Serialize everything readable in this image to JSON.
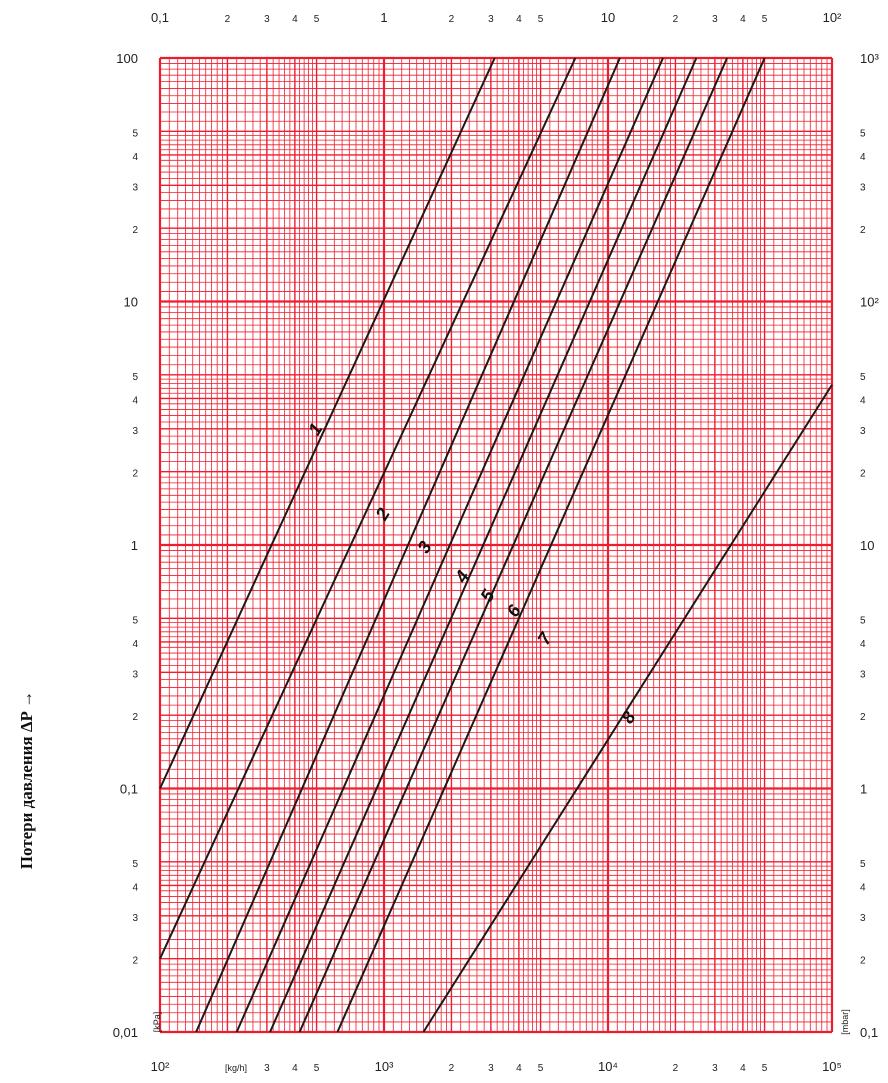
{
  "chart_data": {
    "type": "line",
    "xscale": "log",
    "yscale": "log",
    "ylabel": "Потери давления ΔP →",
    "x_unit": "[kg/h]",
    "y_unit_left": "[kPa]",
    "y_unit_right": "[mbar]",
    "xlim": [
      100,
      100000
    ],
    "ylim": [
      0.01,
      100
    ],
    "grid": true,
    "top_ticks": [
      {
        "v": 100,
        "t": "0,1"
      },
      {
        "v": 200,
        "t": "2"
      },
      {
        "v": 300,
        "t": "3"
      },
      {
        "v": 400,
        "t": "4"
      },
      {
        "v": 500,
        "t": "5"
      },
      {
        "v": 1000,
        "t": "1"
      },
      {
        "v": 2000,
        "t": "2"
      },
      {
        "v": 3000,
        "t": "3"
      },
      {
        "v": 4000,
        "t": "4"
      },
      {
        "v": 5000,
        "t": "5"
      },
      {
        "v": 10000,
        "t": "10"
      },
      {
        "v": 20000,
        "t": "2"
      },
      {
        "v": 30000,
        "t": "3"
      },
      {
        "v": 40000,
        "t": "4"
      },
      {
        "v": 50000,
        "t": "5"
      },
      {
        "v": 100000,
        "t": "10²"
      }
    ],
    "bottom_ticks": [
      {
        "v": 100,
        "t": "10²"
      },
      {
        "v": 300,
        "t": "3"
      },
      {
        "v": 400,
        "t": "4"
      },
      {
        "v": 500,
        "t": "5"
      },
      {
        "v": 1000,
        "t": "10³"
      },
      {
        "v": 2000,
        "t": "2"
      },
      {
        "v": 3000,
        "t": "3"
      },
      {
        "v": 4000,
        "t": "4"
      },
      {
        "v": 5000,
        "t": "5"
      },
      {
        "v": 10000,
        "t": "10⁴"
      },
      {
        "v": 20000,
        "t": "2"
      },
      {
        "v": 30000,
        "t": "3"
      },
      {
        "v": 40000,
        "t": "4"
      },
      {
        "v": 50000,
        "t": "5"
      },
      {
        "v": 100000,
        "t": "10⁵"
      }
    ],
    "left_ticks": [
      {
        "v": 100,
        "t": "100"
      },
      {
        "v": 50,
        "t": "5"
      },
      {
        "v": 40,
        "t": "4"
      },
      {
        "v": 30,
        "t": "3"
      },
      {
        "v": 20,
        "t": "2"
      },
      {
        "v": 10,
        "t": "10"
      },
      {
        "v": 5,
        "t": "5"
      },
      {
        "v": 4,
        "t": "4"
      },
      {
        "v": 3,
        "t": "3"
      },
      {
        "v": 2,
        "t": "2"
      },
      {
        "v": 1,
        "t": "1"
      },
      {
        "v": 0.5,
        "t": "5"
      },
      {
        "v": 0.4,
        "t": "4"
      },
      {
        "v": 0.3,
        "t": "3"
      },
      {
        "v": 0.2,
        "t": "2"
      },
      {
        "v": 0.1,
        "t": "0,1"
      },
      {
        "v": 0.05,
        "t": "5"
      },
      {
        "v": 0.04,
        "t": "4"
      },
      {
        "v": 0.03,
        "t": "3"
      },
      {
        "v": 0.02,
        "t": "2"
      },
      {
        "v": 0.01,
        "t": "0,01"
      }
    ],
    "right_ticks": [
      {
        "v": 100,
        "t": "10³"
      },
      {
        "v": 50,
        "t": "5"
      },
      {
        "v": 40,
        "t": "4"
      },
      {
        "v": 30,
        "t": "3"
      },
      {
        "v": 20,
        "t": "2"
      },
      {
        "v": 10,
        "t": "10²"
      },
      {
        "v": 5,
        "t": "5"
      },
      {
        "v": 4,
        "t": "4"
      },
      {
        "v": 3,
        "t": "3"
      },
      {
        "v": 2,
        "t": "2"
      },
      {
        "v": 1,
        "t": "10"
      },
      {
        "v": 0.5,
        "t": "5"
      },
      {
        "v": 0.4,
        "t": "4"
      },
      {
        "v": 0.3,
        "t": "3"
      },
      {
        "v": 0.2,
        "t": "2"
      },
      {
        "v": 0.1,
        "t": "1"
      },
      {
        "v": 0.05,
        "t": "5"
      },
      {
        "v": 0.04,
        "t": "4"
      },
      {
        "v": 0.03,
        "t": "3"
      },
      {
        "v": 0.02,
        "t": "2"
      },
      {
        "v": 0.01,
        "t": "0,1"
      }
    ],
    "series": [
      {
        "name": "1",
        "points": [
          [
            100,
            0.1
          ],
          [
            3120,
            100
          ]
        ],
        "label_at": [
          520,
          2.9
        ]
      },
      {
        "name": "2",
        "points": [
          [
            100,
            0.02
          ],
          [
            7150,
            100
          ]
        ],
        "label_at": [
          1040,
          1.3
        ]
      },
      {
        "name": "3",
        "points": [
          [
            145,
            0.01
          ],
          [
            11300,
            100
          ]
        ],
        "label_at": [
          1600,
          0.95
        ]
      },
      {
        "name": "4",
        "points": [
          [
            220,
            0.01
          ],
          [
            17600,
            100
          ]
        ],
        "label_at": [
          2350,
          0.72
        ]
      },
      {
        "name": "5",
        "points": [
          [
            310,
            0.01
          ],
          [
            24800,
            100
          ]
        ],
        "label_at": [
          3050,
          0.6
        ]
      },
      {
        "name": "6",
        "points": [
          [
            420,
            0.01
          ],
          [
            34000,
            100
          ]
        ],
        "label_at": [
          4000,
          0.52
        ]
      },
      {
        "name": "7",
        "points": [
          [
            620,
            0.01
          ],
          [
            50000,
            100
          ]
        ],
        "label_at": [
          5500,
          0.4
        ]
      },
      {
        "name": "8",
        "points": [
          [
            1500,
            0.01
          ],
          [
            100000,
            4.55
          ]
        ],
        "label_at": [
          13000,
          0.19
        ]
      }
    ]
  },
  "colors": {
    "grid": "#ef1c2e",
    "curve": "#1a1a1a",
    "background": "#ffffff"
  }
}
